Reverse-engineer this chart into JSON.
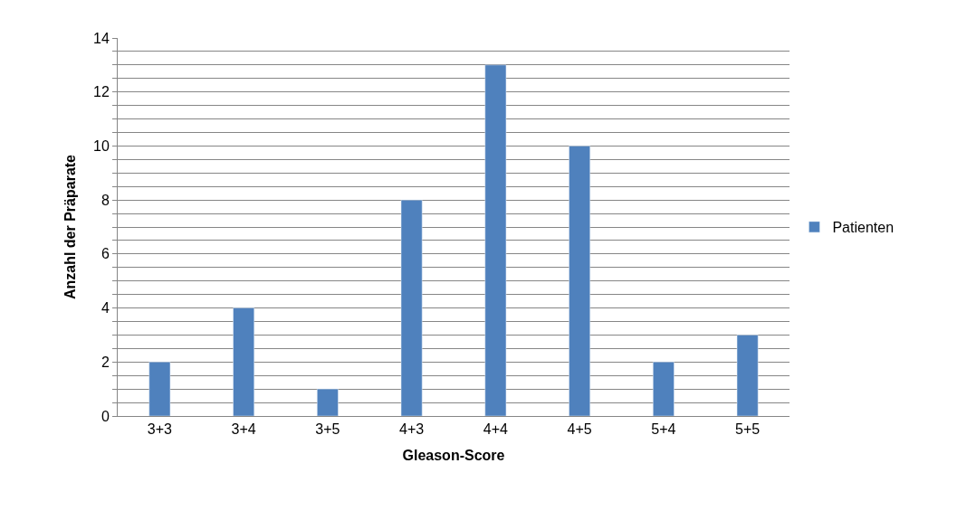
{
  "chart_data": {
    "type": "bar",
    "xlabel": "Gleason-Score",
    "ylabel": "Anzahl der Präparate",
    "categories": [
      "3+3",
      "3+4",
      "3+5",
      "4+3",
      "4+4",
      "4+5",
      "5+4",
      "5+5"
    ],
    "series": [
      {
        "name": "Patienten",
        "color": "#4f81bd",
        "values": [
          2,
          4,
          1,
          8,
          13,
          10,
          2,
          3
        ]
      }
    ],
    "ylim": [
      0,
      14
    ],
    "yticks": [
      0,
      {
        "value": 0.5,
        "label": null
      },
      {
        "value": 1,
        "label": null
      },
      {
        "value": 1.5,
        "label": null
      },
      2,
      {
        "value": 2.5,
        "label": null
      },
      {
        "value": 3,
        "label": null
      },
      {
        "value": 3.5,
        "label": null
      },
      4,
      {
        "value": 4.5,
        "label": null
      },
      {
        "value": 5,
        "label": null
      },
      {
        "value": 5.5,
        "label": null
      },
      6,
      {
        "value": 6.5,
        "label": null
      },
      {
        "value": 7,
        "label": null
      },
      {
        "value": 7.5,
        "label": null
      },
      8,
      {
        "value": 8.5,
        "label": null
      },
      {
        "value": 9,
        "label": null
      },
      {
        "value": 9.5,
        "label": null
      },
      10,
      {
        "value": 10.5,
        "label": null
      },
      {
        "value": 11,
        "label": null
      },
      {
        "value": 11.5,
        "label": null
      },
      12,
      {
        "value": 12.5,
        "label": null
      },
      {
        "value": 13,
        "label": null
      },
      {
        "value": 13.5,
        "label": null
      },
      14
    ],
    "grid": "y",
    "legend": "right"
  }
}
